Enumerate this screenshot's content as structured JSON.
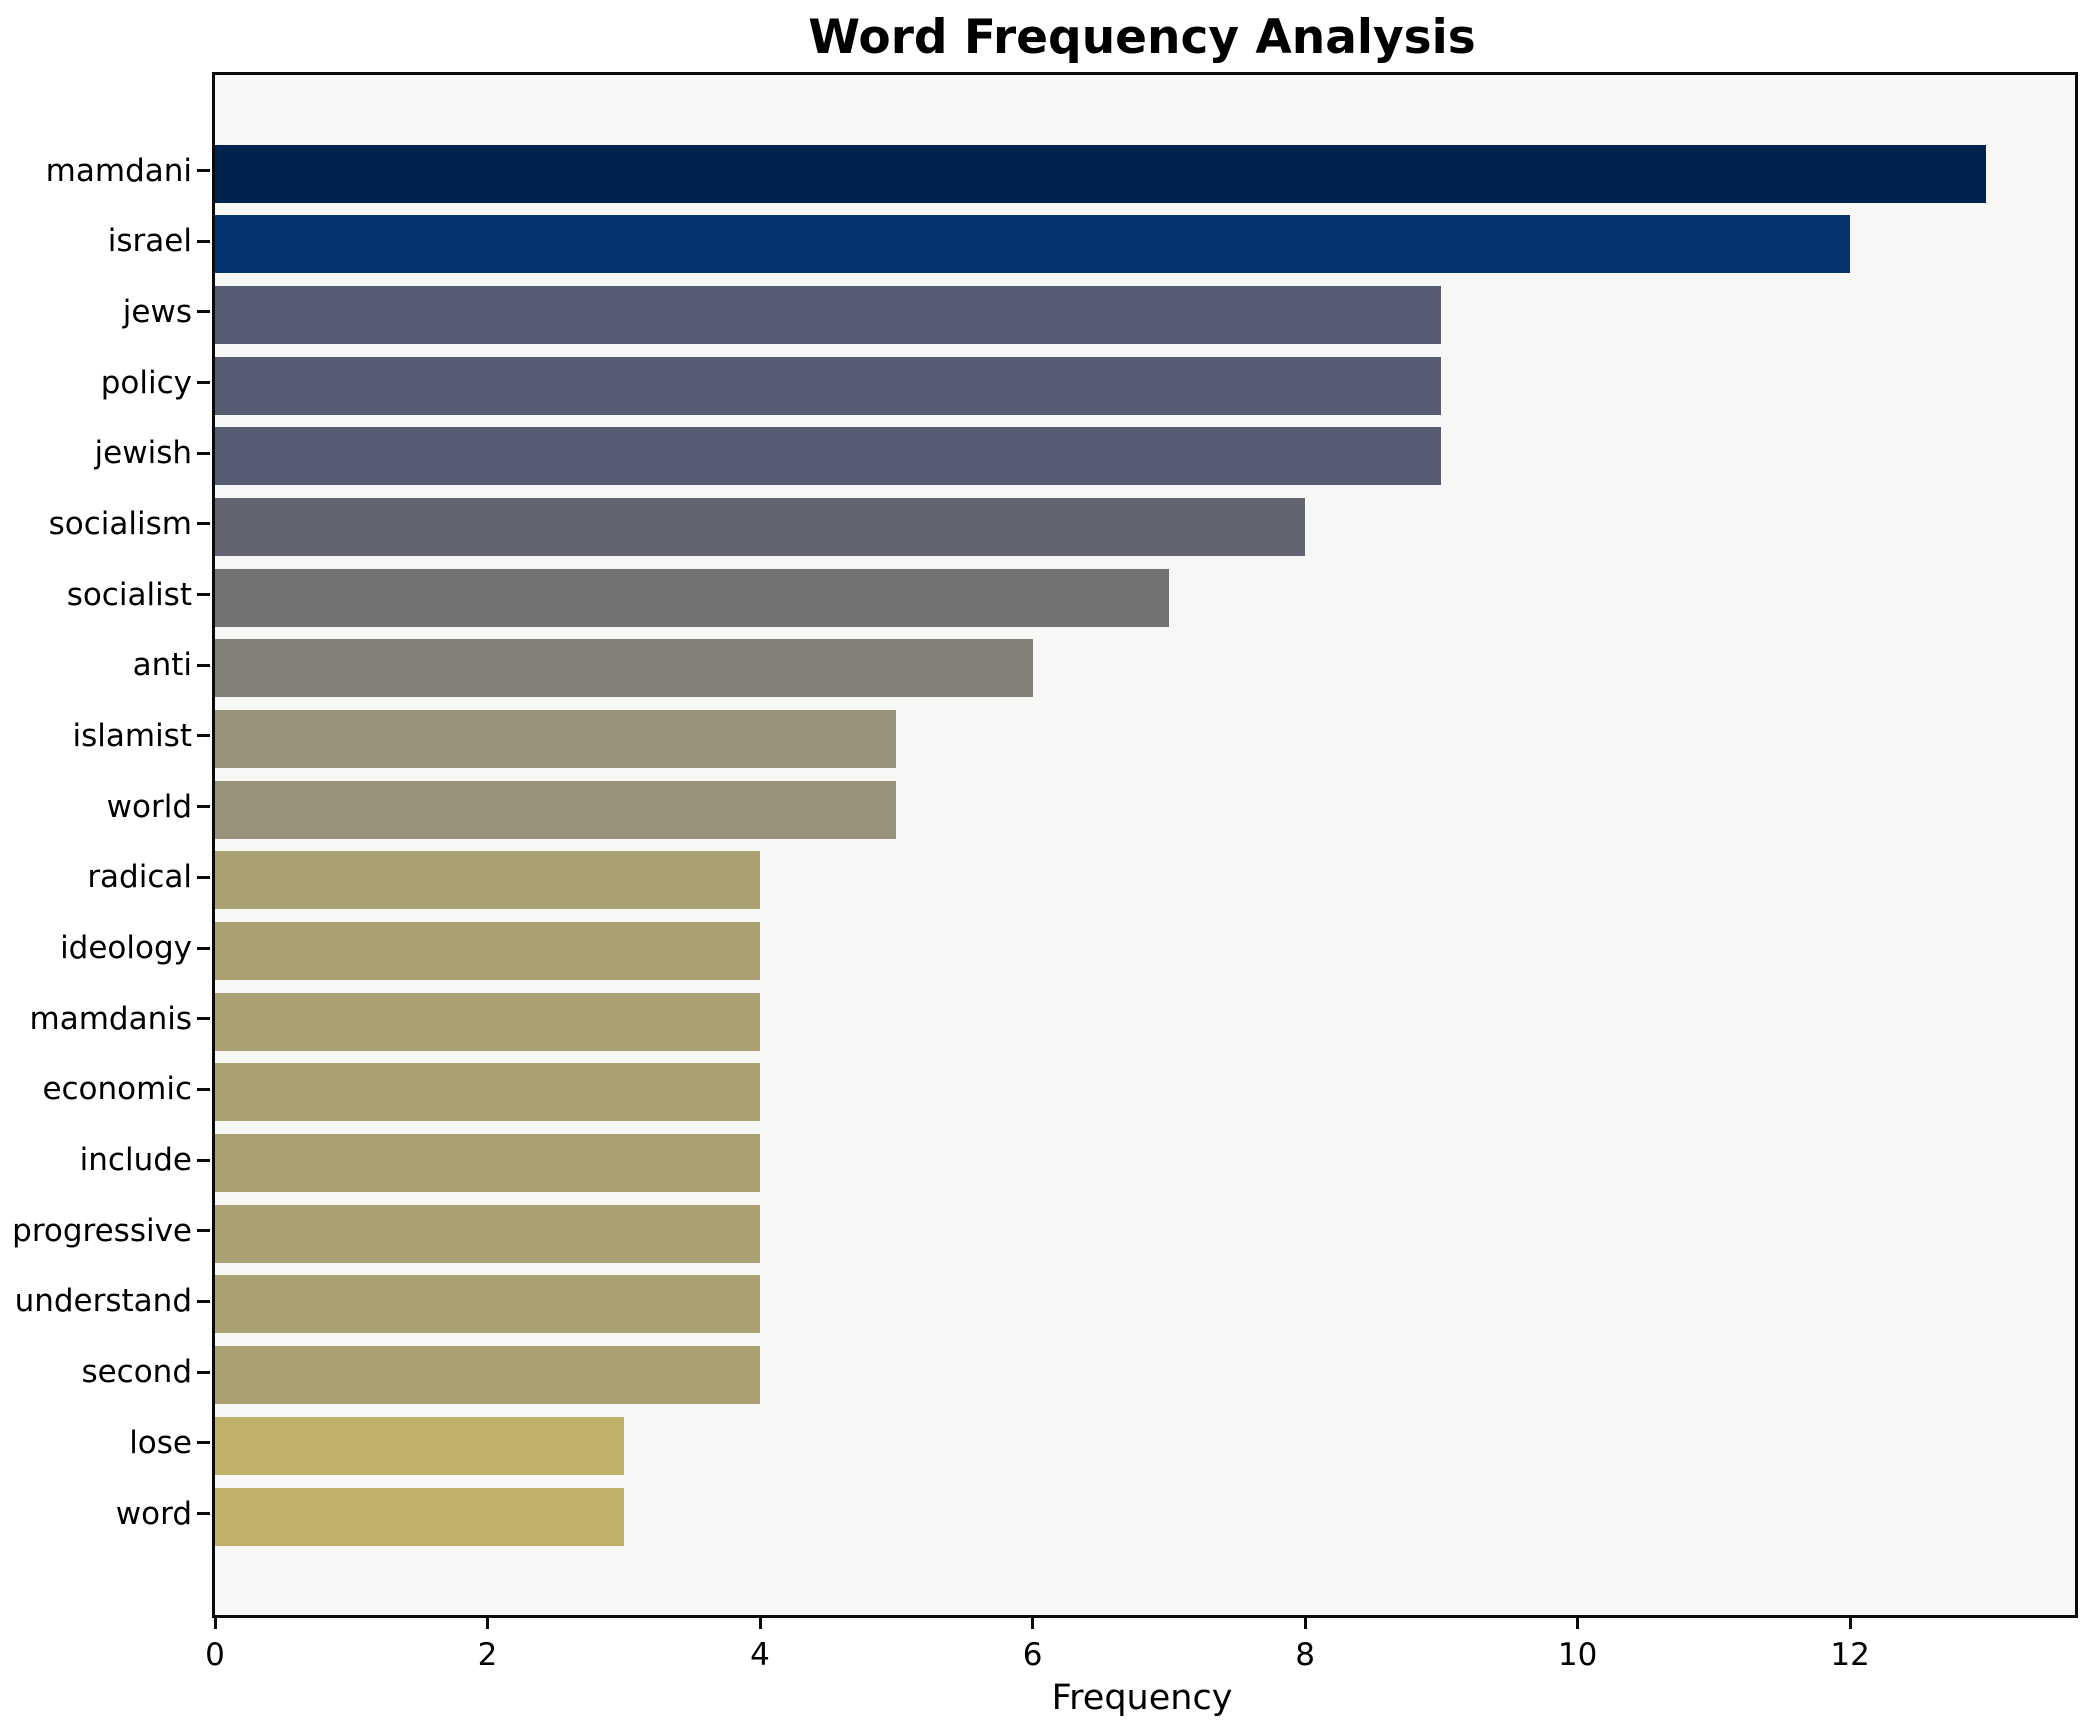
{
  "title": "Word Frequency Analysis",
  "chart_data": {
    "type": "bar",
    "orientation": "horizontal",
    "title": "Word Frequency Analysis",
    "xlabel": "Frequency",
    "ylabel": "",
    "categories": [
      "mamdani",
      "israel",
      "jews",
      "policy",
      "jewish",
      "socialism",
      "socialist",
      "anti",
      "islamist",
      "world",
      "radical",
      "ideology",
      "mamdanis",
      "economic",
      "include",
      "progressive",
      "understand",
      "second",
      "lose",
      "word"
    ],
    "values": [
      13,
      12,
      9,
      9,
      9,
      8,
      7,
      6,
      5,
      5,
      4,
      4,
      4,
      4,
      4,
      4,
      4,
      4,
      3,
      3
    ],
    "bar_colors": [
      "#00234d",
      "#053470",
      "#565d73",
      "#565d73",
      "#565d73",
      "#62646f",
      "#737271",
      "#828078",
      "#97937a",
      "#97937a",
      "#a9a172",
      "#a9a172",
      "#a9a172",
      "#a9a172",
      "#a9a172",
      "#a9a172",
      "#a9a172",
      "#a9a172",
      "#c0b169",
      "#c0b169"
    ],
    "xlim": [
      0,
      13.65
    ],
    "xticks": [
      0,
      2,
      4,
      6,
      8,
      10,
      12
    ],
    "grid": false,
    "legend_position": "none",
    "plot_background": "#f7f7f6",
    "figure_background": "#ffffff",
    "spine_color": "#000000"
  }
}
